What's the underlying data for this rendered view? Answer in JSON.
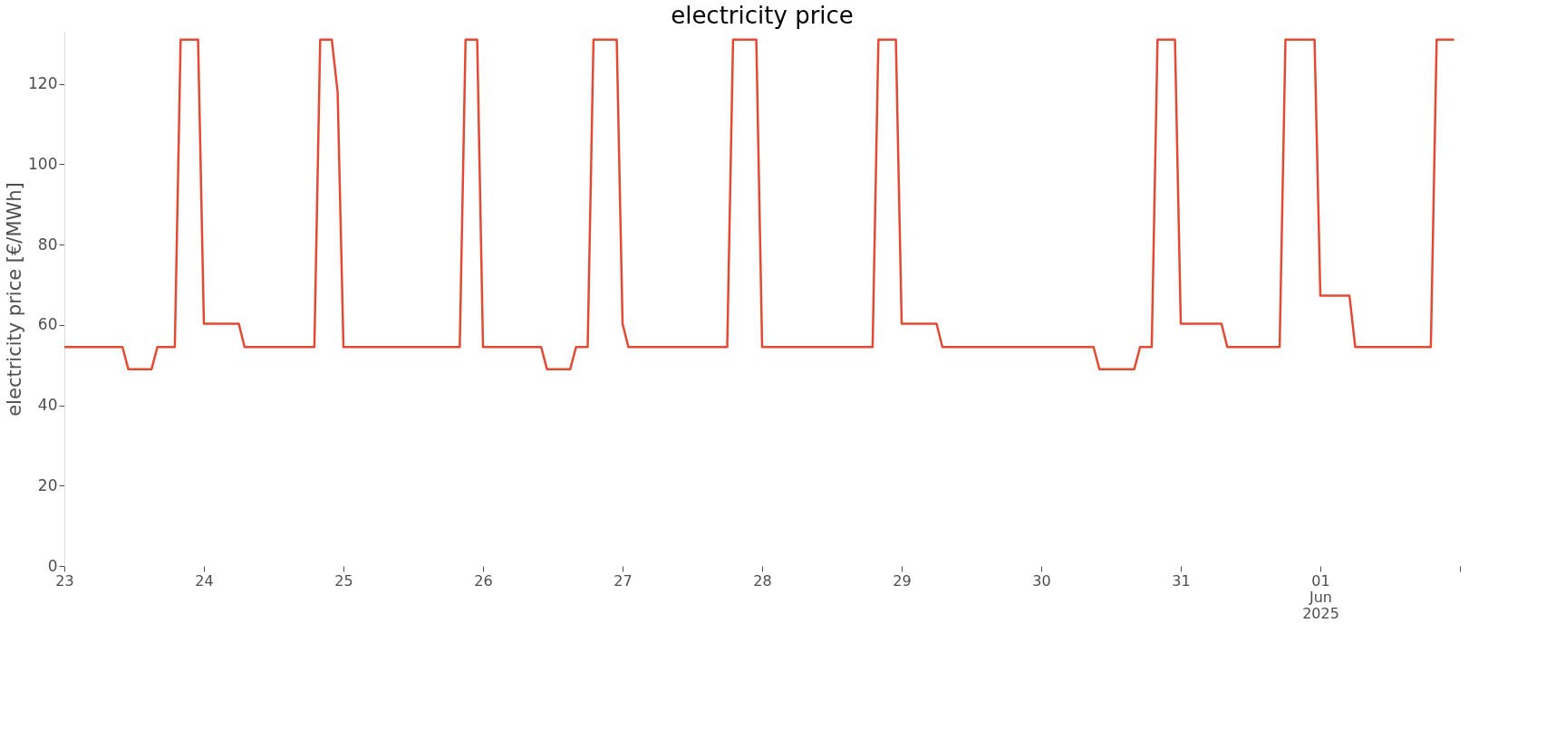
{
  "chart_data": {
    "type": "line",
    "title": "electricity price",
    "ylabel": "electricity price [€/MWh]",
    "x": [
      "2025-05-23T00:00",
      "2025-05-23T10:00",
      "2025-05-23T11:00",
      "2025-05-23T15:00",
      "2025-05-23T16:00",
      "2025-05-23T19:00",
      "2025-05-23T20:00",
      "2025-05-23T23:00",
      "2025-05-24T00:00",
      "2025-05-24T06:00",
      "2025-05-24T07:00",
      "2025-05-24T19:00",
      "2025-05-24T20:00",
      "2025-05-24T22:00",
      "2025-05-24T23:00",
      "2025-05-25T00:00",
      "2025-05-25T20:00",
      "2025-05-25T21:00",
      "2025-05-25T23:00",
      "2025-05-26T00:00",
      "2025-05-26T10:00",
      "2025-05-26T11:00",
      "2025-05-26T15:00",
      "2025-05-26T16:00",
      "2025-05-26T18:00",
      "2025-05-26T19:00",
      "2025-05-26T23:00",
      "2025-05-27T00:00",
      "2025-05-27T01:00",
      "2025-05-27T18:00",
      "2025-05-27T19:00",
      "2025-05-27T23:00",
      "2025-05-28T00:00",
      "2025-05-28T19:00",
      "2025-05-28T20:00",
      "2025-05-28T23:00",
      "2025-05-29T00:00",
      "2025-05-29T06:00",
      "2025-05-29T07:00",
      "2025-05-30T09:00",
      "2025-05-30T10:00",
      "2025-05-30T16:00",
      "2025-05-30T17:00",
      "2025-05-30T19:00",
      "2025-05-30T20:00",
      "2025-05-30T23:00",
      "2025-05-31T00:00",
      "2025-05-31T07:00",
      "2025-05-31T08:00",
      "2025-05-31T17:00",
      "2025-05-31T18:00",
      "2025-05-31T23:00",
      "2025-06-01T00:00",
      "2025-06-01T05:00",
      "2025-06-01T06:00",
      "2025-06-01T19:00",
      "2025-06-01T20:00",
      "2025-06-01T23:00"
    ],
    "series": [
      {
        "color": "#e24a33",
        "values": [
          54.5,
          54.5,
          49,
          49,
          54.5,
          54.5,
          131,
          131,
          60.3,
          60.3,
          54.5,
          54.5,
          131,
          131,
          118,
          54.5,
          54.5,
          131,
          131,
          54.5,
          54.5,
          49,
          49,
          54.5,
          54.5,
          131,
          131,
          60.3,
          54.5,
          54.5,
          131,
          131,
          54.5,
          54.5,
          131,
          131,
          60.3,
          60.3,
          54.5,
          54.5,
          49,
          49,
          54.5,
          54.5,
          131,
          131,
          60.3,
          60.3,
          54.5,
          54.5,
          131,
          131,
          67.3,
          67.3,
          54.5,
          54.5,
          131,
          131
        ]
      }
    ],
    "xlim": [
      "2025-05-23T00:00",
      "2025-06-02T00:00"
    ],
    "xticks": [
      {
        "value": "2025-05-23",
        "label": "23"
      },
      {
        "value": "2025-05-24",
        "label": "24"
      },
      {
        "value": "2025-05-25",
        "label": "25"
      },
      {
        "value": "2025-05-26",
        "label": "26"
      },
      {
        "value": "2025-05-27",
        "label": "27"
      },
      {
        "value": "2025-05-28",
        "label": "28"
      },
      {
        "value": "2025-05-29",
        "label": "29"
      },
      {
        "value": "2025-05-30",
        "label": "30"
      },
      {
        "value": "2025-05-31",
        "label": "31"
      },
      {
        "value": "2025-06-01",
        "label": "01\nJun\n2025"
      },
      {
        "value": "2025-06-02",
        "label": null
      }
    ],
    "ylim": [
      0,
      133
    ],
    "yticks": [
      0,
      20,
      40,
      60,
      80,
      100,
      120
    ],
    "grid": false,
    "legend": false,
    "marker": "none",
    "line_style": "solid"
  }
}
